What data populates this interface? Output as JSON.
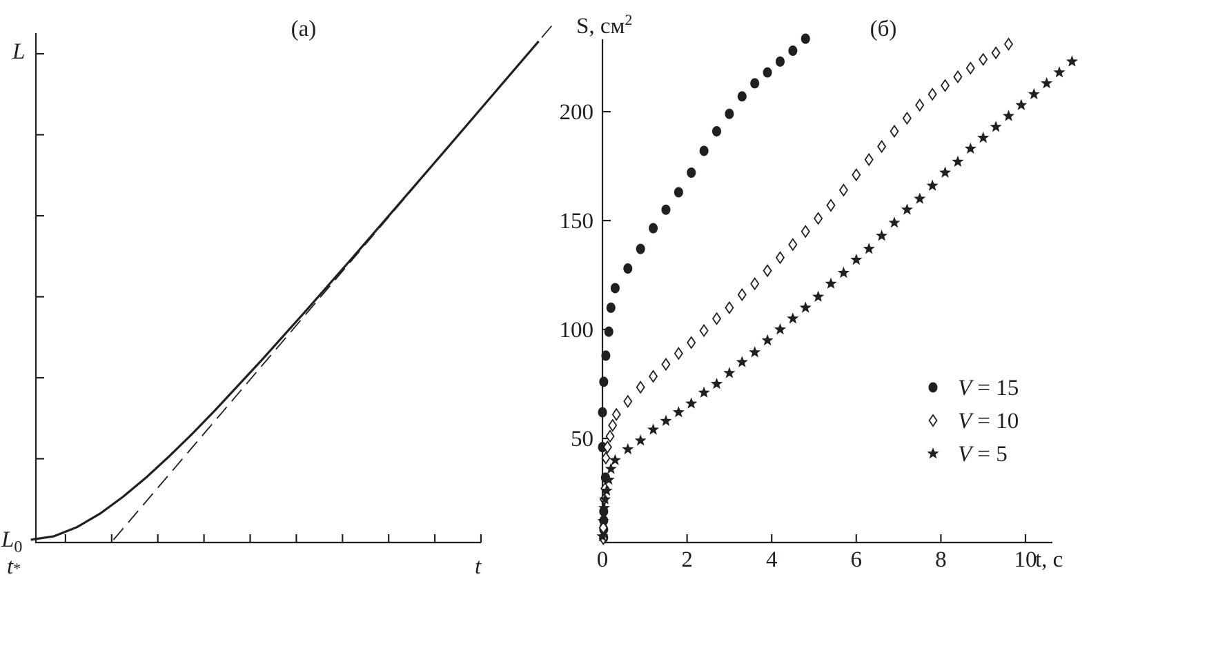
{
  "chart_data": [
    {
      "type": "line",
      "panel_label": "(а)",
      "xlabel": "t",
      "ylabel": "L",
      "x_start_label": "t*",
      "y_start_label": "L0",
      "x_ticks": [
        1,
        2,
        3,
        4,
        5,
        6,
        7,
        8,
        9,
        10
      ],
      "y_ticks": [
        1,
        2,
        3,
        4,
        5,
        6
      ],
      "xlim": [
        0.25,
        10
      ],
      "ylim": [
        0,
        6.24
      ],
      "grid": false,
      "series": [
        {
          "style": "solid",
          "x": [
            0.25,
            0.75,
            1.25,
            1.75,
            2.25,
            2.75,
            3.25,
            3.75,
            4.25,
            5.25,
            6.25,
            7.25,
            8.25,
            9.25,
            10.25,
            11.25
          ],
          "y": [
            0,
            0.043,
            0.156,
            0.323,
            0.532,
            0.77,
            1.032,
            1.311,
            1.604,
            2.218,
            2.854,
            3.504,
            4.163,
            4.824,
            5.489,
            6.155
          ]
        },
        {
          "style": "dashed",
          "x": [
            2.04,
            11.54
          ],
          "y": [
            0,
            6.35
          ]
        }
      ]
    },
    {
      "type": "scatter",
      "panel_label": "(б)",
      "xlabel": "t, с",
      "ylabel": "S, см",
      "ylabel_sup": "2",
      "x_ticks": [
        0,
        2,
        4,
        6,
        8,
        10
      ],
      "y_ticks": [
        50,
        100,
        150,
        200
      ],
      "xlim": [
        0,
        10.6
      ],
      "ylim": [
        2,
        233
      ],
      "grid": false,
      "legend_position": "bottom-right",
      "series": [
        {
          "name": "V = 15",
          "legend_var": "V",
          "legend_rest": " = 15",
          "marker": "filled-circle",
          "x": [
            0.03,
            0.03,
            0.03,
            0.03,
            0.07,
            0,
            0,
            0.03,
            0.08,
            0.15,
            0.2,
            0.3,
            0.6,
            0.9,
            1.2,
            1.5,
            1.8,
            2.1,
            2.4,
            2.7,
            3.0,
            3.3,
            3.6,
            3.9,
            4.2,
            4.5,
            4.8
          ],
          "y": [
            4.4,
            8.2,
            12.3,
            16.5,
            32,
            46,
            62,
            76,
            88,
            99,
            110,
            119,
            128,
            137,
            146.5,
            155,
            163,
            172,
            182,
            191,
            199,
            207,
            213,
            218,
            223,
            228,
            233.5
          ]
        },
        {
          "name": "V = 10",
          "legend_var": "V",
          "legend_rest": " = 10",
          "marker": "open-diamond",
          "x": [
            0.02,
            0.02,
            0.04,
            0.06,
            0.08,
            0.12,
            0.18,
            0.24,
            0.33,
            0.6,
            0.9,
            1.2,
            1.5,
            1.8,
            2.1,
            2.4,
            2.7,
            3.0,
            3.3,
            3.6,
            3.9,
            4.2,
            4.5,
            4.8,
            5.1,
            5.4,
            5.7,
            6.0,
            6.3,
            6.6,
            6.9,
            7.2,
            7.5,
            7.8,
            8.1,
            8.4,
            8.7,
            9.0,
            9.3,
            9.6
          ],
          "y": [
            4,
            9,
            22,
            27,
            41,
            46,
            51,
            56,
            61,
            67,
            73.5,
            78.5,
            84,
            89,
            94,
            99.5,
            105,
            110,
            116,
            121,
            127,
            133,
            139,
            145,
            151,
            157,
            164,
            171,
            178,
            184,
            191,
            197,
            203,
            208,
            212,
            216,
            220,
            224,
            227,
            231
          ]
        },
        {
          "name": "V = 5",
          "legend_var": "V",
          "legend_rest": " = 5",
          "marker": "filled-star",
          "x": [
            0.0,
            0.02,
            0.04,
            0.06,
            0.1,
            0.15,
            0.2,
            0.3,
            0.6,
            0.9,
            1.2,
            1.5,
            1.8,
            2.1,
            2.4,
            2.7,
            3.0,
            3.3,
            3.6,
            3.9,
            4.2,
            4.5,
            4.8,
            5.1,
            5.4,
            5.7,
            6.0,
            6.3,
            6.6,
            6.9,
            7.2,
            7.5,
            7.8,
            8.1,
            8.4,
            8.7,
            9.0,
            9.3,
            9.6,
            9.9,
            10.2,
            10.5,
            10.8,
            11.1
          ],
          "y": [
            5,
            12,
            18,
            22,
            26,
            31,
            36,
            40,
            45,
            49,
            54,
            58,
            62,
            66,
            71,
            75,
            80,
            85,
            89.5,
            95,
            100,
            105,
            110,
            115,
            121,
            126,
            132,
            137,
            143,
            149,
            155,
            160,
            166,
            172,
            177,
            183,
            188,
            193,
            198,
            203,
            208,
            213,
            218,
            223
          ]
        }
      ]
    }
  ]
}
